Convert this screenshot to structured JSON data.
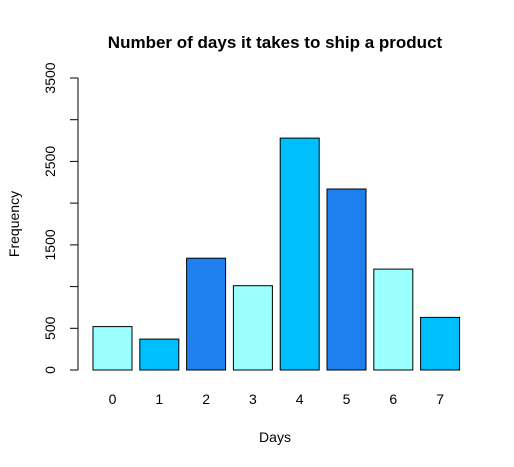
{
  "chart_data": {
    "type": "bar",
    "title": "Number of days it takes to ship a product",
    "xlabel": "Days",
    "ylabel": "Frequency",
    "categories": [
      "0",
      "1",
      "2",
      "3",
      "4",
      "5",
      "6",
      "7"
    ],
    "values": [
      520,
      370,
      1340,
      1010,
      2780,
      2170,
      1210,
      630
    ],
    "colors": [
      "#99FFFF",
      "#00BFFF",
      "#1E7FEF",
      "#99FFFF",
      "#00BFFF",
      "#1E7FEF",
      "#99FFFF",
      "#00BFFF"
    ],
    "ylim": [
      0,
      3500
    ],
    "yticks": [
      0,
      500,
      1000,
      1500,
      2000,
      2500,
      3000,
      3500
    ],
    "ytick_labels": [
      "0",
      "500",
      "",
      "1500",
      "",
      "2500",
      "",
      "3500"
    ],
    "grid": false,
    "legend": "none"
  }
}
